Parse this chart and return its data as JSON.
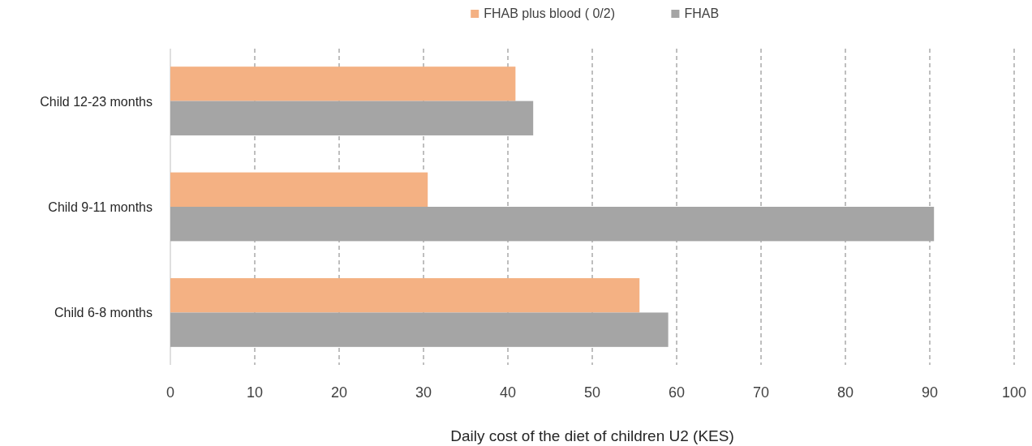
{
  "chart_data": {
    "type": "bar",
    "orientation": "horizontal",
    "xlabel": "Daily cost of the diet of children U2 (KES)",
    "categories": [
      "Child 12-23 months",
      "Child 9-11 months",
      "Child 6-8 months"
    ],
    "series": [
      {
        "name": "FHAB plus blood ( 0/2)",
        "color": "#f4b183",
        "values": [
          40.9,
          30.5,
          55.6
        ]
      },
      {
        "name": "FHAB",
        "color": "#a5a5a5",
        "values": [
          43.0,
          90.5,
          59.0
        ]
      }
    ],
    "xlim": [
      0,
      100
    ],
    "xticks": [
      0,
      10,
      20,
      30,
      40,
      50,
      60,
      70,
      80,
      90,
      100
    ],
    "grid": "x",
    "legend": "top"
  }
}
